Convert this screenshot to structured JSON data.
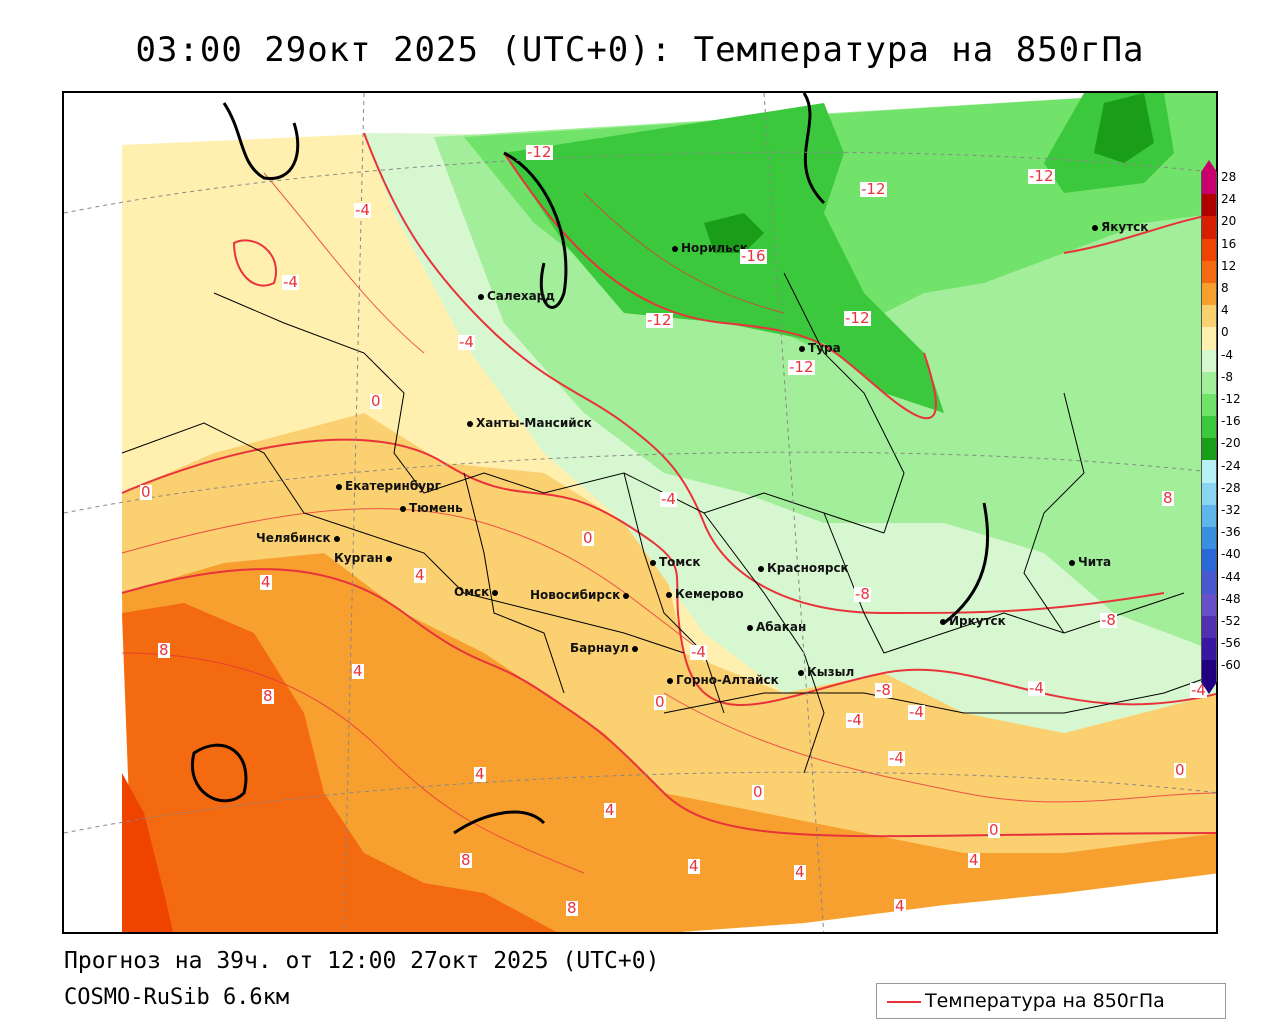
{
  "title": "03:00 29окт 2025 (UTC+0): Температура на 850гПа",
  "footer": {
    "forecast": "Прогноз на 39ч. от 12:00 27окт 2025 (UTC+0)",
    "model": "COSMO-RuSib 6.6км"
  },
  "legend": {
    "label": "Температура на 850гПа",
    "line_color": "#e8333b"
  },
  "colorbar": {
    "ticks": [
      "28",
      "24",
      "20",
      "16",
      "12",
      "8",
      "4",
      "0",
      "-4",
      "-8",
      "-12",
      "-16",
      "-20",
      "-24",
      "-28",
      "-32",
      "-36",
      "-40",
      "-44",
      "-48",
      "-52",
      "-56",
      "-60"
    ],
    "colors": [
      "#c8006e",
      "#b00000",
      "#d81e00",
      "#ee4400",
      "#f36a10",
      "#f7a030",
      "#fbd070",
      "#fff0b0",
      "#d6f7d0",
      "#a2ee9a",
      "#72e36a",
      "#3cc83c",
      "#1a9e1a",
      "#b8f0f8",
      "#8ad6f2",
      "#60b6ea",
      "#3a90e0",
      "#2a68d8",
      "#4858d0",
      "#6850c8",
      "#5030b0",
      "#3818a0",
      "#200080"
    ]
  },
  "cities": [
    {
      "name": "Норильск"
    },
    {
      "name": "Якутск"
    },
    {
      "name": "Салехард"
    },
    {
      "name": "Тура"
    },
    {
      "name": "Ханты-Мансийск"
    },
    {
      "name": "Екатеринбург"
    },
    {
      "name": "Тюмень"
    },
    {
      "name": "Челябинск"
    },
    {
      "name": "Курган"
    },
    {
      "name": "Омск"
    },
    {
      "name": "Новосибирск"
    },
    {
      "name": "Томск"
    },
    {
      "name": "Кемерово"
    },
    {
      "name": "Красноярск"
    },
    {
      "name": "Абакан"
    },
    {
      "name": "Барнаул"
    },
    {
      "name": "Горно-Алтайск"
    },
    {
      "name": "Кызыл"
    },
    {
      "name": "Иркутск"
    },
    {
      "name": "Чита"
    }
  ],
  "contour_labels": [
    "-12",
    "-4",
    "-4",
    "-12",
    "-16",
    "-12",
    "-12",
    "-12",
    "-12",
    "-4",
    "0",
    "-4",
    "-8",
    "8",
    "-8",
    "-4",
    "0",
    "4",
    "4",
    "0",
    "8",
    "8",
    "4",
    "-4",
    "-8",
    "-4",
    "-4",
    "4",
    "0",
    "0",
    "4",
    "8",
    "4",
    "4",
    "4",
    "8",
    "0",
    "4",
    "-4",
    "-4",
    "0"
  ]
}
